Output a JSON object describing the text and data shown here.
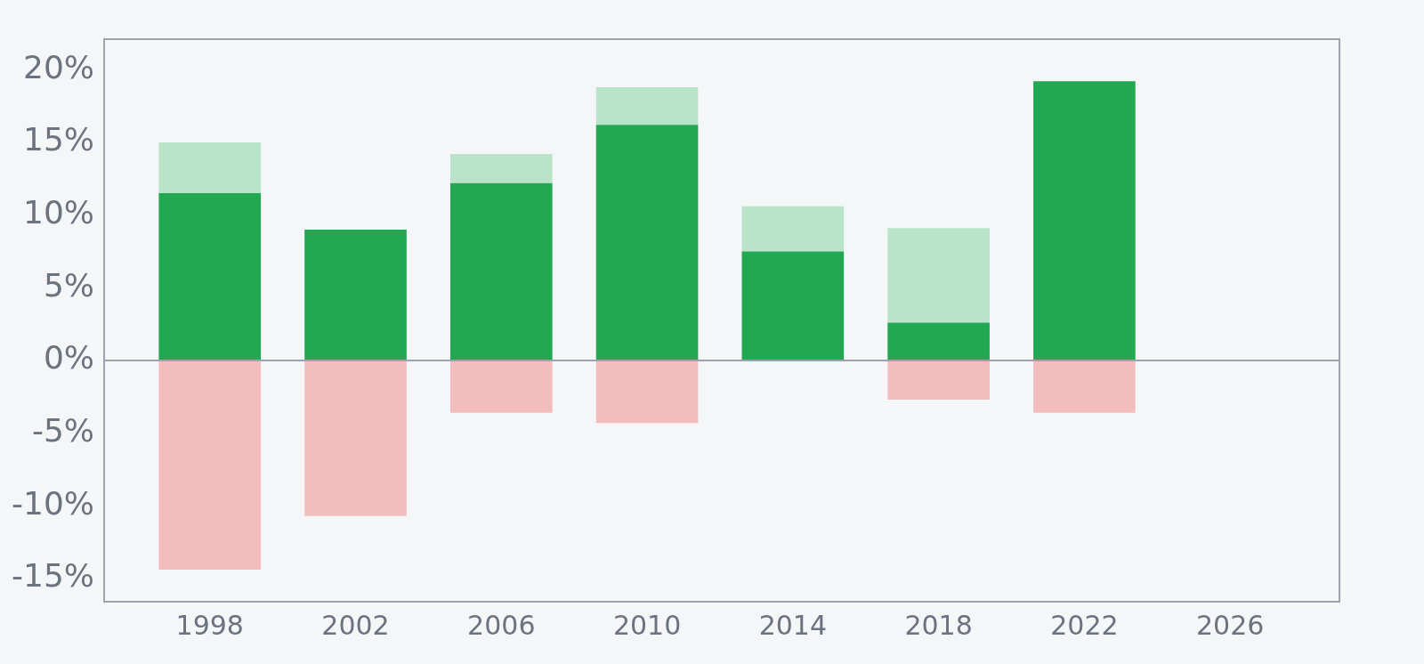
{
  "chart_data": {
    "type": "bar",
    "stacked": true,
    "x": [
      1998,
      2002,
      2006,
      2010,
      2014,
      2018,
      2022
    ],
    "series": [
      {
        "color": "#22a852",
        "values": [
          11.5,
          9.0,
          12.2,
          16.2,
          7.5,
          2.6,
          19.2
        ]
      },
      {
        "color": "#b9e4c9",
        "values": [
          3.5,
          null,
          2.0,
          2.6,
          3.1,
          6.5,
          null
        ]
      },
      {
        "color": "#f3bdbd",
        "values": [
          -14.4,
          -10.7,
          -3.6,
          -4.3,
          null,
          -2.7,
          -3.6
        ]
      }
    ],
    "xlim": [
      1995.1,
      2029
    ],
    "xticks": [
      1998,
      2002,
      2006,
      2010,
      2014,
      2018,
      2022,
      2026
    ],
    "ylim": [
      -16.6,
      22.1
    ],
    "yticks": [
      {
        "value": -15,
        "label": "-15%"
      },
      {
        "value": -10,
        "label": "-10%"
      },
      {
        "value": -5,
        "label": "-5%"
      },
      {
        "value": 0,
        "label": "0%"
      },
      {
        "value": 5,
        "label": "5%"
      },
      {
        "value": 10,
        "label": "10%"
      },
      {
        "value": 15,
        "label": "15%"
      },
      {
        "value": 20,
        "label": "20%"
      }
    ],
    "ref_lines": [
      {
        "axis": "y",
        "value": 0,
        "color": "#9ca3af"
      }
    ],
    "grid": false,
    "legend": false
  }
}
